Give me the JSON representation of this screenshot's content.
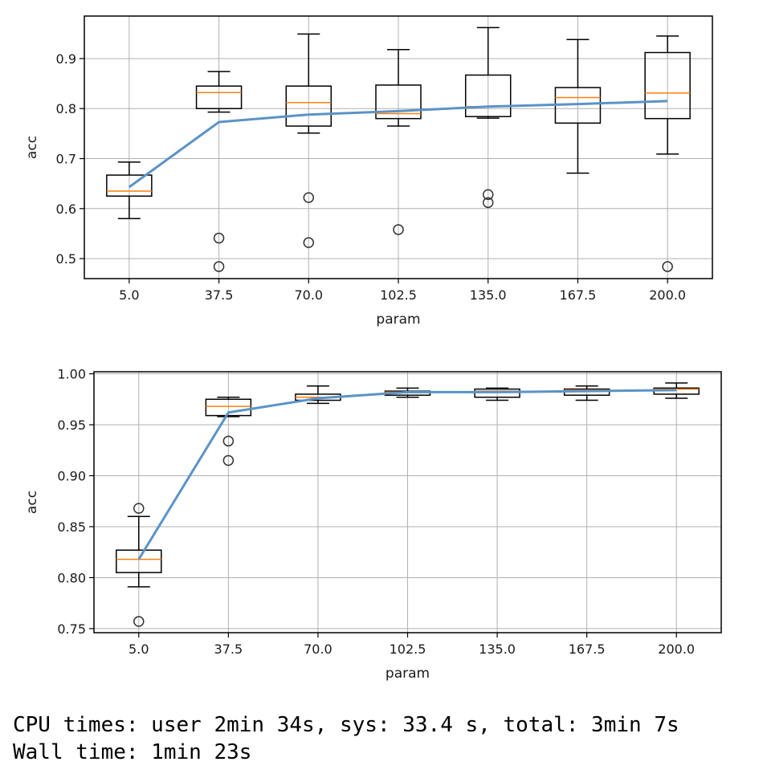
{
  "chart_data": [
    {
      "type": "box",
      "xlabel": "param",
      "ylabel": "acc",
      "categories": [
        "5.0",
        "37.5",
        "70.0",
        "102.5",
        "135.0",
        "167.5",
        "200.0"
      ],
      "ylim": [
        0.46,
        0.985
      ],
      "yticks": [
        0.5,
        0.6,
        0.7,
        0.8,
        0.9
      ],
      "ytick_labels": [
        "0.5",
        "0.6",
        "0.7",
        "0.8",
        "0.9"
      ],
      "grid": true,
      "boxes": [
        {
          "whislo": 0.58,
          "q1": 0.625,
          "med": 0.635,
          "q3": 0.667,
          "whishi": 0.693,
          "fliers": []
        },
        {
          "whislo": 0.793,
          "q1": 0.8,
          "med": 0.832,
          "q3": 0.845,
          "whishi": 0.874,
          "fliers": [
            0.541,
            0.484
          ]
        },
        {
          "whislo": 0.751,
          "q1": 0.765,
          "med": 0.812,
          "q3": 0.845,
          "whishi": 0.949,
          "fliers": [
            0.622,
            0.532
          ]
        },
        {
          "whislo": 0.765,
          "q1": 0.78,
          "med": 0.79,
          "q3": 0.847,
          "whishi": 0.918,
          "fliers": [
            0.558
          ]
        },
        {
          "whislo": 0.781,
          "q1": 0.784,
          "med": 0.804,
          "q3": 0.867,
          "whishi": 0.962,
          "fliers": [
            0.628,
            0.612
          ]
        },
        {
          "whislo": 0.671,
          "q1": 0.771,
          "med": 0.822,
          "q3": 0.842,
          "whishi": 0.938,
          "fliers": []
        },
        {
          "whislo": 0.709,
          "q1": 0.78,
          "med": 0.831,
          "q3": 0.912,
          "whishi": 0.945,
          "fliers": [
            0.484
          ]
        }
      ],
      "mean_line": [
        0.643,
        0.773,
        0.788,
        0.795,
        0.804,
        0.809,
        0.815
      ],
      "colors": {
        "box": "#000000",
        "median": "#ff7f0e",
        "mean_line": "#5b93c8",
        "grid": "#b0b0b0"
      }
    },
    {
      "type": "box",
      "xlabel": "param",
      "ylabel": "acc",
      "categories": [
        "5.0",
        "37.5",
        "70.0",
        "102.5",
        "135.0",
        "167.5",
        "200.0"
      ],
      "ylim": [
        0.746,
        1.002
      ],
      "yticks": [
        0.75,
        0.8,
        0.85,
        0.9,
        0.95,
        1.0
      ],
      "ytick_labels": [
        "0.75",
        "0.80",
        "0.85",
        "0.90",
        "0.95",
        "1.00"
      ],
      "grid": true,
      "boxes": [
        {
          "whislo": 0.791,
          "q1": 0.805,
          "med": 0.818,
          "q3": 0.827,
          "whishi": 0.86,
          "fliers": [
            0.868,
            0.757
          ]
        },
        {
          "whislo": 0.958,
          "q1": 0.959,
          "med": 0.968,
          "q3": 0.975,
          "whishi": 0.977,
          "fliers": [
            0.934,
            0.915
          ]
        },
        {
          "whislo": 0.971,
          "q1": 0.974,
          "med": 0.977,
          "q3": 0.98,
          "whishi": 0.988,
          "fliers": []
        },
        {
          "whislo": 0.977,
          "q1": 0.979,
          "med": 0.982,
          "q3": 0.983,
          "whishi": 0.986,
          "fliers": []
        },
        {
          "whislo": 0.974,
          "q1": 0.977,
          "med": 0.983,
          "q3": 0.985,
          "whishi": 0.986,
          "fliers": []
        },
        {
          "whislo": 0.974,
          "q1": 0.979,
          "med": 0.984,
          "q3": 0.985,
          "whishi": 0.988,
          "fliers": []
        },
        {
          "whislo": 0.976,
          "q1": 0.98,
          "med": 0.985,
          "q3": 0.986,
          "whishi": 0.991,
          "fliers": []
        }
      ],
      "mean_line": [
        0.818,
        0.962,
        0.976,
        0.982,
        0.982,
        0.983,
        0.984
      ],
      "colors": {
        "box": "#000000",
        "median": "#ff7f0e",
        "mean_line": "#5b93c8",
        "grid": "#b0b0b0"
      }
    }
  ],
  "output": {
    "cpu_times": "CPU times: user 2min 34s, sys: 33.4 s, total: 3min 7s",
    "wall_time": "Wall time: 1min 23s"
  }
}
